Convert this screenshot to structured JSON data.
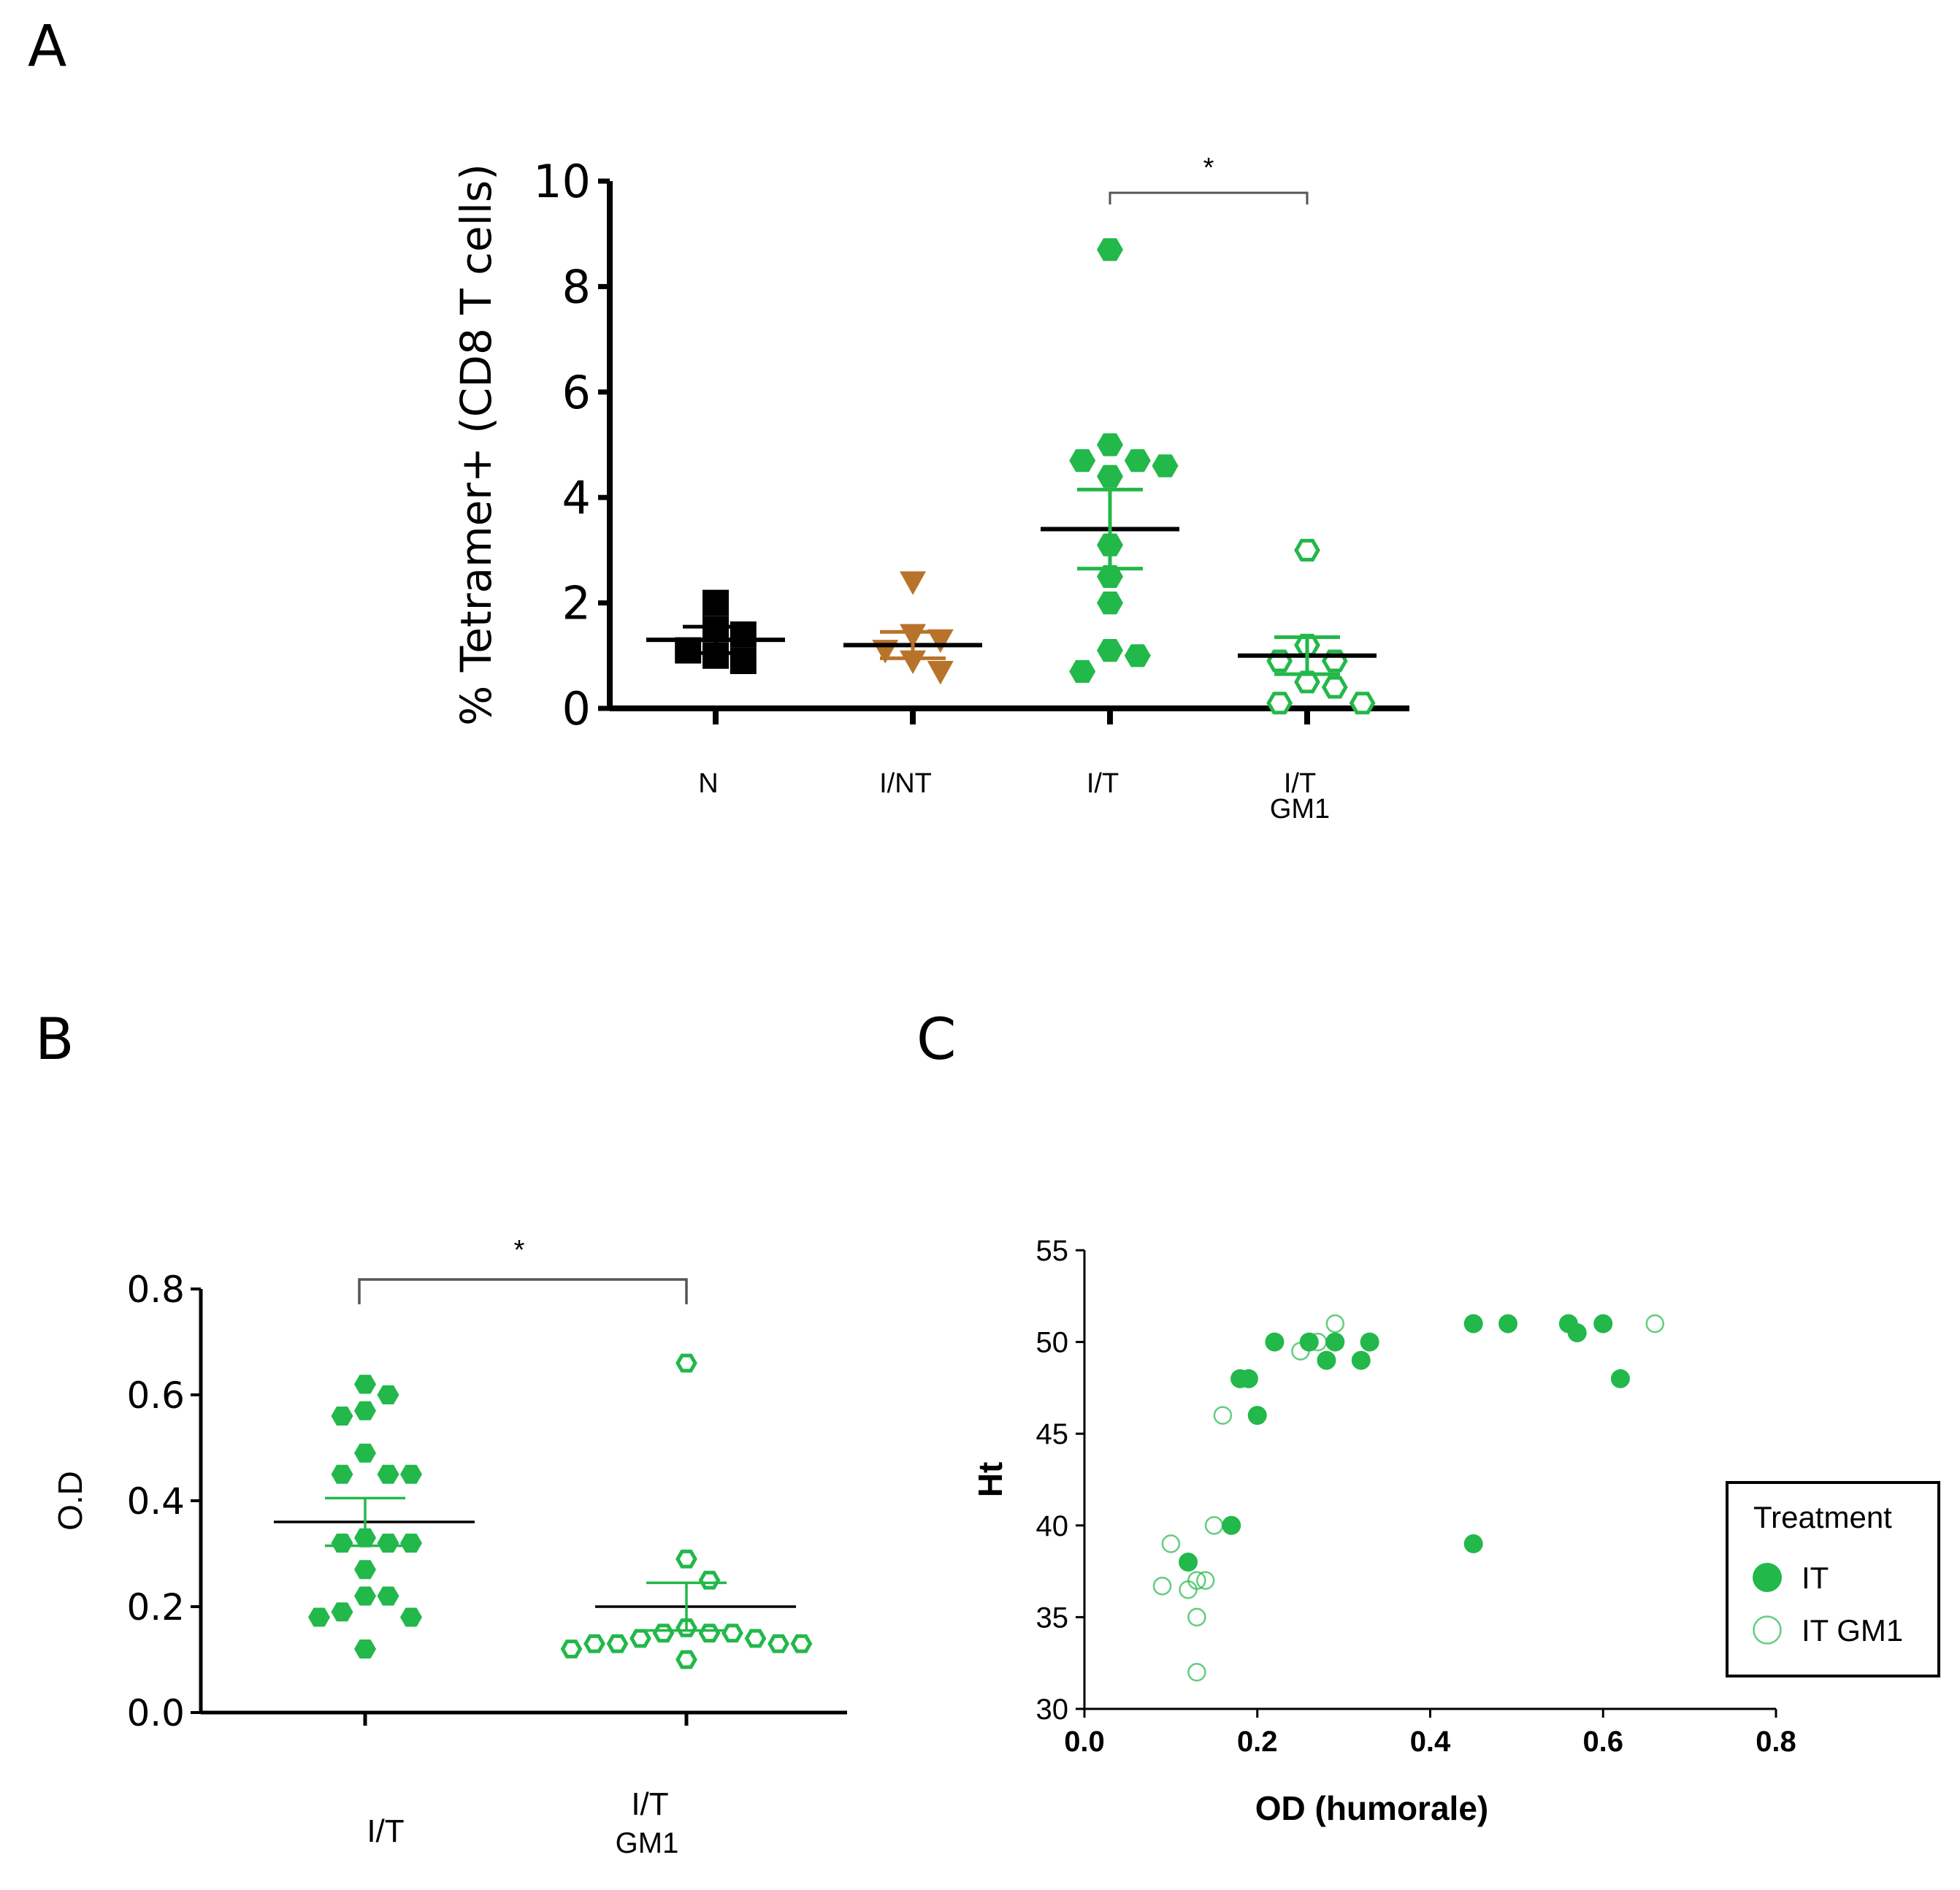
{
  "colors": {
    "green": "#22B84A",
    "brown": "#B8732A",
    "black": "#000000",
    "axis": "#000000",
    "bracket": "#555555"
  },
  "chart_data": [
    {
      "panel": "A",
      "type": "scatter",
      "subtype": "dot-plot",
      "ylabel": "% Tetramer+ (CD8 T cells)",
      "xlabel": "",
      "ylim": [
        0,
        10
      ],
      "yticks": [
        "0",
        "2",
        "4",
        "6",
        "8",
        "10"
      ],
      "groups": [
        {
          "label": "N",
          "label2": "",
          "marker": "filled-square",
          "color": "#000000",
          "values": [
            0.9,
            1.1,
            1.4,
            1.5,
            2.0,
            1.0
          ],
          "mean": 1.3,
          "sem": 0.25
        },
        {
          "label": "I/NT",
          "label2": "",
          "marker": "filled-triangle-down",
          "color": "#B8732A",
          "values": [
            0.7,
            0.9,
            1.1,
            1.3,
            1.4,
            2.4
          ],
          "mean": 1.2,
          "sem": 0.25
        },
        {
          "label": "I/T",
          "label2": "",
          "marker": "filled-hexagon",
          "color": "#22B84A",
          "values": [
            8.7,
            4.6,
            4.7,
            4.7,
            5.0,
            4.4,
            3.1,
            2.5,
            2.0,
            1.1,
            1.0,
            0.7
          ],
          "mean": 3.4,
          "sem": 0.75
        },
        {
          "label": "I/T",
          "label2": "GM1",
          "marker": "open-hexagon",
          "color": "#22B84A",
          "values": [
            3.0,
            1.2,
            0.9,
            0.9,
            0.5,
            0.4,
            0.1,
            0.1
          ],
          "mean": 1.0,
          "sem": 0.35
        }
      ],
      "significance": {
        "from": 2,
        "to": 3,
        "label": "*"
      }
    },
    {
      "panel": "B",
      "type": "scatter",
      "subtype": "dot-plot",
      "ylabel": "O.D",
      "xlabel": "",
      "ylim": [
        0.0,
        0.8
      ],
      "yticks": [
        "0.0",
        "0.2",
        "0.4",
        "0.6",
        "0.8"
      ],
      "groups": [
        {
          "label": "I/T",
          "label2": "",
          "marker": "filled-hexagon",
          "color": "#22B84A",
          "values": [
            0.62,
            0.6,
            0.57,
            0.56,
            0.49,
            0.45,
            0.45,
            0.45,
            0.33,
            0.32,
            0.32,
            0.32,
            0.27,
            0.22,
            0.22,
            0.19,
            0.18,
            0.18,
            0.12
          ],
          "mean": 0.36,
          "sem": 0.045
        },
        {
          "label": "I/T",
          "label2": "GM1",
          "marker": "open-hexagon",
          "color": "#22B84A",
          "values": [
            0.66,
            0.29,
            0.25,
            0.16,
            0.15,
            0.15,
            0.14,
            0.13,
            0.13,
            0.13,
            0.12,
            0.13,
            0.14,
            0.15,
            0.1
          ],
          "mean": 0.2,
          "sem": 0.045
        }
      ],
      "significance": {
        "from": 0,
        "to": 1,
        "label": "*"
      }
    },
    {
      "panel": "C",
      "type": "scatter",
      "xlabel": "OD (humorale)",
      "ylabel": "Ht",
      "xlim": [
        0.0,
        0.8
      ],
      "ylim": [
        30,
        55
      ],
      "xticks": [
        "0.0",
        "0.2",
        "0.4",
        "0.6",
        "0.8"
      ],
      "yticks": [
        "30",
        "35",
        "40",
        "45",
        "50",
        "55"
      ],
      "legend": {
        "title": "Treatment",
        "position": "right"
      },
      "series": [
        {
          "name": "IT",
          "marker": "filled-circle",
          "color": "#22B84A",
          "points": [
            [
              0.12,
              38
            ],
            [
              0.17,
              40
            ],
            [
              0.18,
              48
            ],
            [
              0.19,
              48
            ],
            [
              0.2,
              46
            ],
            [
              0.22,
              50
            ],
            [
              0.26,
              50
            ],
            [
              0.28,
              49
            ],
            [
              0.29,
              50
            ],
            [
              0.32,
              49
            ],
            [
              0.33,
              50
            ],
            [
              0.45,
              51
            ],
            [
              0.45,
              39
            ],
            [
              0.49,
              51
            ],
            [
              0.56,
              51
            ],
            [
              0.57,
              50.5
            ],
            [
              0.6,
              51
            ],
            [
              0.62,
              48
            ]
          ]
        },
        {
          "name": "IT GM1",
          "marker": "open-circle",
          "color": "#22B84A",
          "points": [
            [
              0.09,
              36.7
            ],
            [
              0.1,
              39
            ],
            [
              0.12,
              36.5
            ],
            [
              0.13,
              37
            ],
            [
              0.13,
              35
            ],
            [
              0.13,
              32
            ],
            [
              0.14,
              37
            ],
            [
              0.15,
              40
            ],
            [
              0.16,
              46
            ],
            [
              0.25,
              49.5
            ],
            [
              0.27,
              50
            ],
            [
              0.29,
              51
            ],
            [
              0.66,
              51
            ]
          ]
        }
      ]
    }
  ],
  "panel_letters": {
    "a": "A",
    "b": "B",
    "c": "C"
  }
}
